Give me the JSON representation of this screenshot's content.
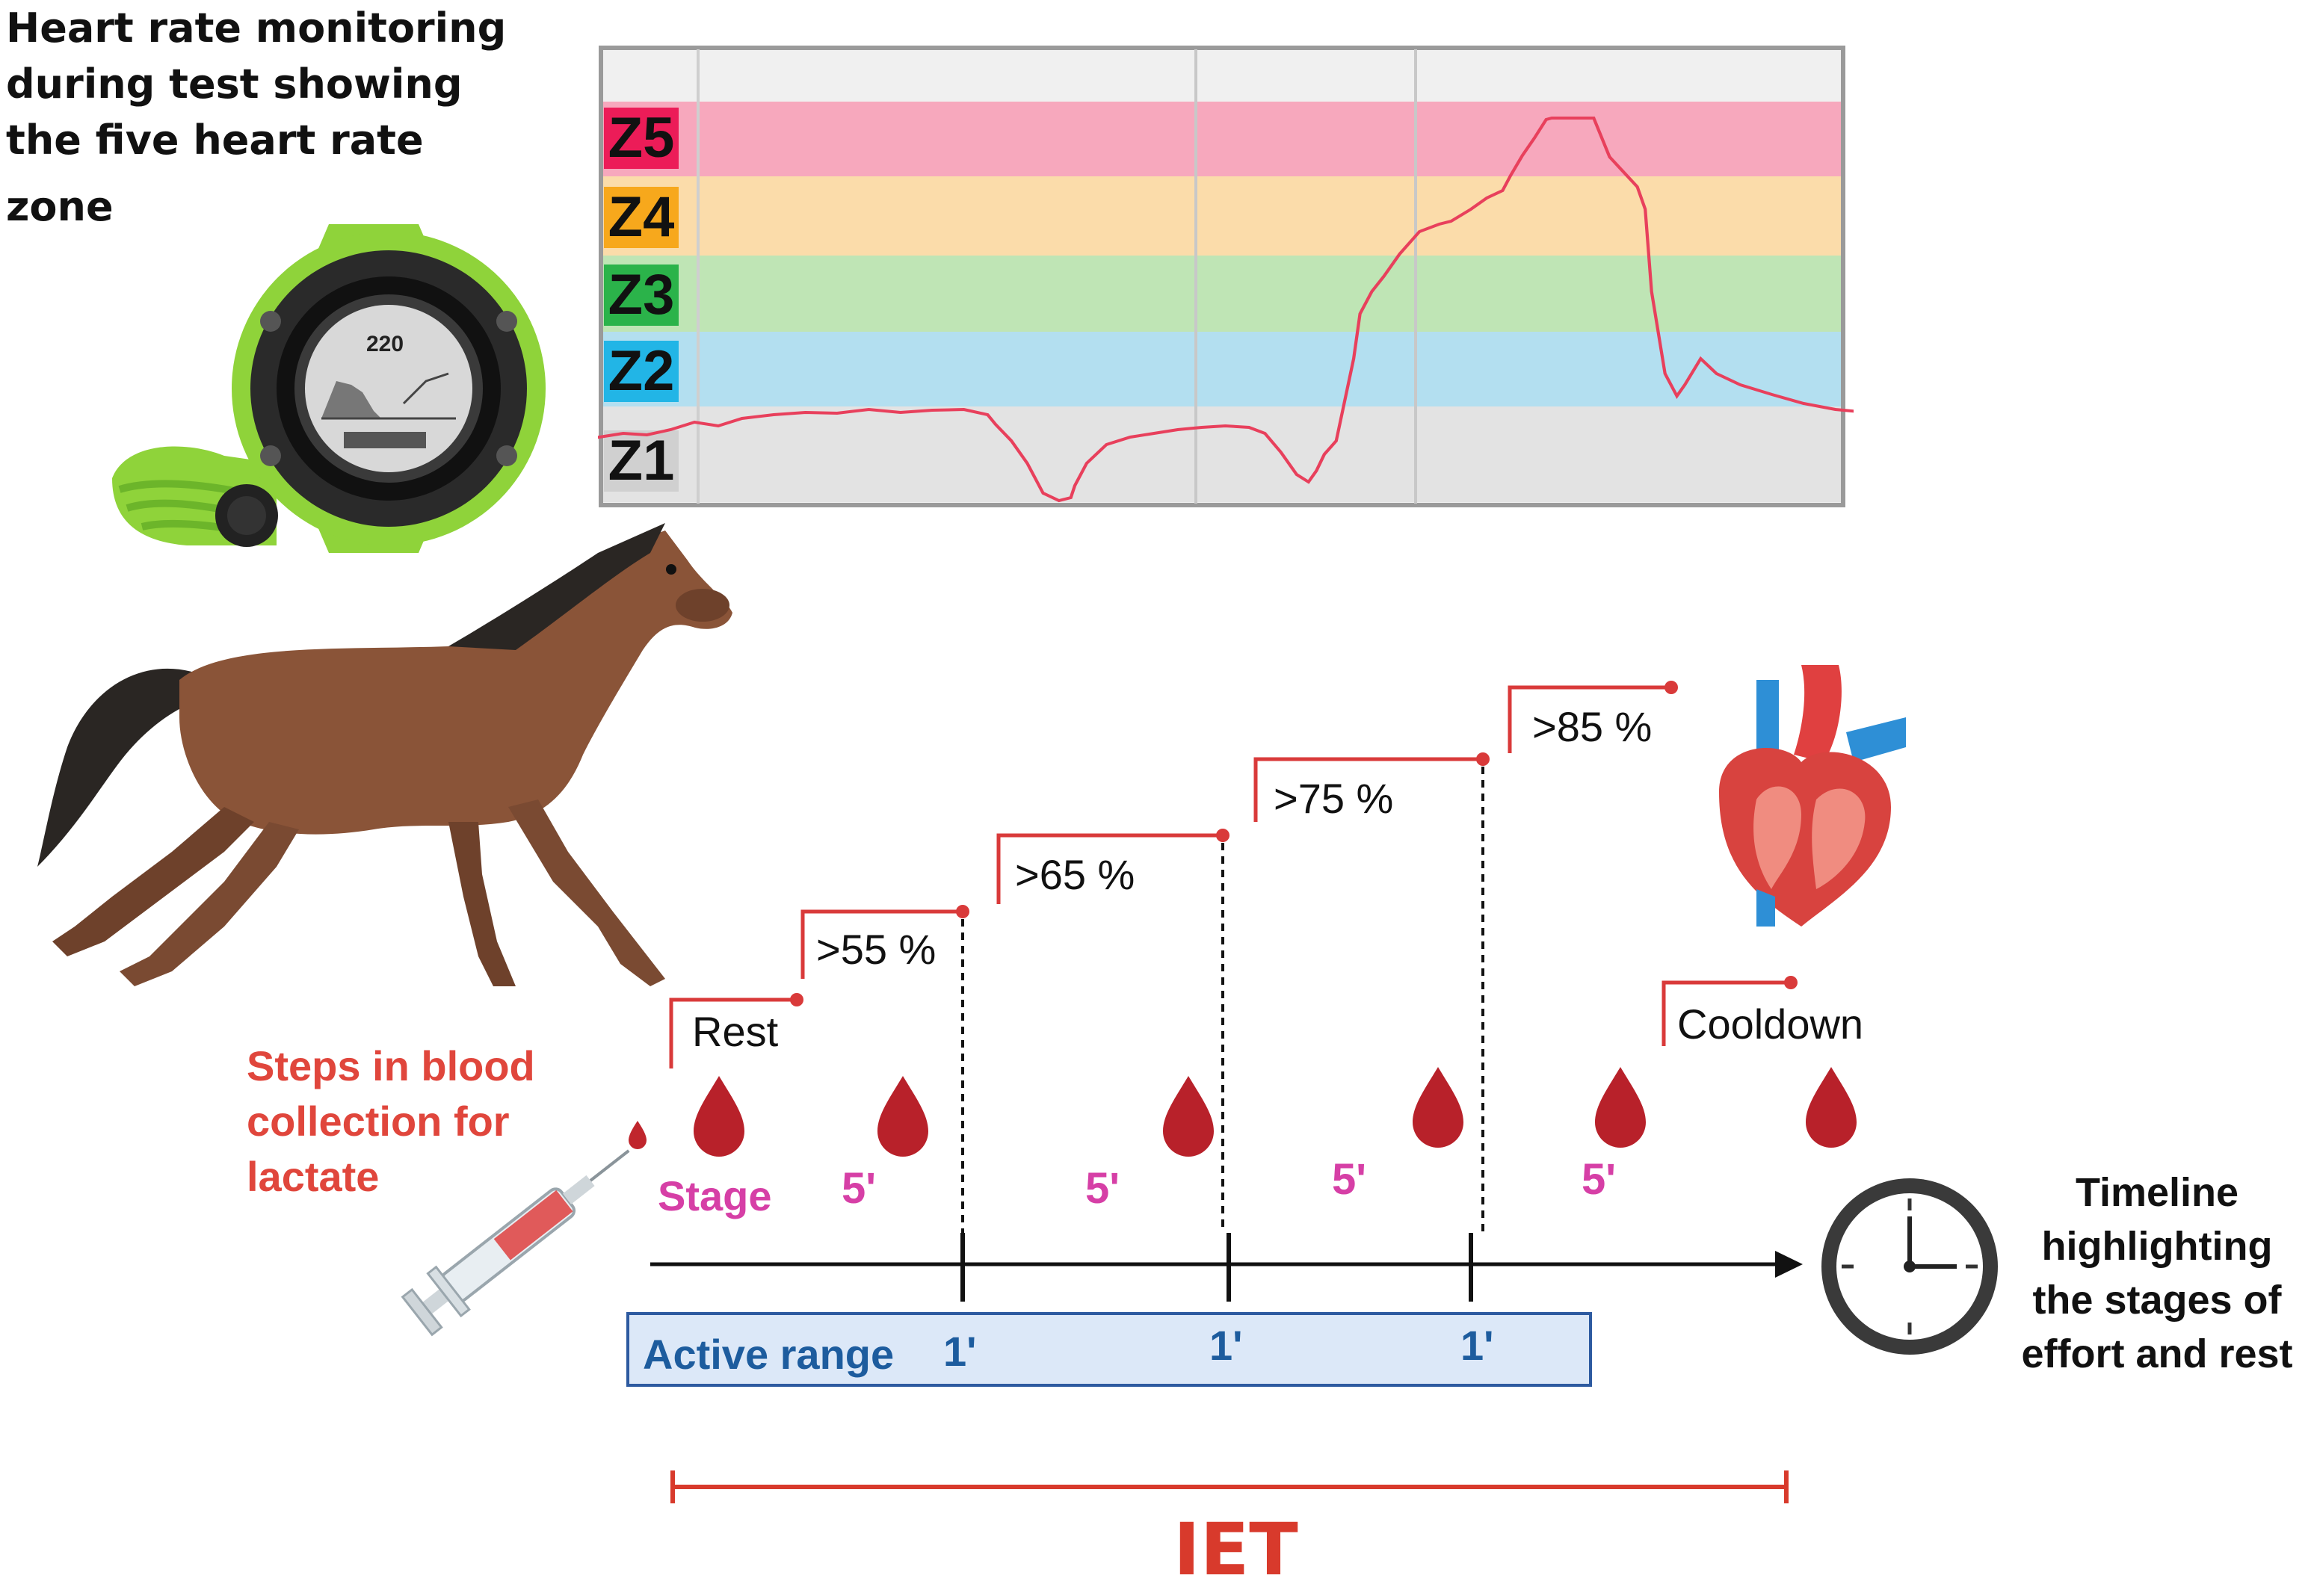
{
  "title": {
    "lines": [
      "Heart rate monitoring",
      "during test showing",
      "the five heart rate",
      "zone"
    ]
  },
  "zones": [
    {
      "label": "Z5",
      "band": "#f7a8bd",
      "tag": "#ec1c58"
    },
    {
      "label": "Z4",
      "band": "#fbdcaa",
      "tag": "#f7a81c"
    },
    {
      "label": "Z3",
      "band": "#bfe5b5",
      "tag": "#2bb34a"
    },
    {
      "label": "Z2",
      "band": "#b3dff0",
      "tag": "#22b5e6"
    },
    {
      "label": "Z1",
      "band": "#e3e3e3",
      "tag": "#d0d0d0"
    }
  ],
  "watch": {
    "display_value": "220"
  },
  "blood_label": {
    "lines": [
      "Steps in blood",
      "collection for",
      "lactate"
    ]
  },
  "stages": {
    "rest": "Rest",
    "p55": ">55 %",
    "p65": ">65 %",
    "p75": ">75 %",
    "p85": ">85 %",
    "cooldown": "Cooldown",
    "stage_word": "Stage",
    "durations": [
      "5'",
      "5'",
      "5'",
      "5'"
    ]
  },
  "active_range": {
    "label": "Active range",
    "marks": [
      "1'",
      "1'",
      "1'"
    ]
  },
  "timeline_label": {
    "lines": [
      "Timeline",
      "highlighting",
      "the stages of",
      "effort and rest"
    ]
  },
  "iet": "IET",
  "colors": {
    "step_red": "#d93a3a",
    "stage_pink": "#d63fa6",
    "active_blue": "#1d5c9e",
    "active_fill": "#dce8f8",
    "hr_line": "#e8405c",
    "iet_red": "#d83a2c"
  },
  "icons": [
    "smartwatch-icon",
    "horse-icon",
    "syringe-icon",
    "blood-drop-icon",
    "heart-icon",
    "clock-icon"
  ]
}
